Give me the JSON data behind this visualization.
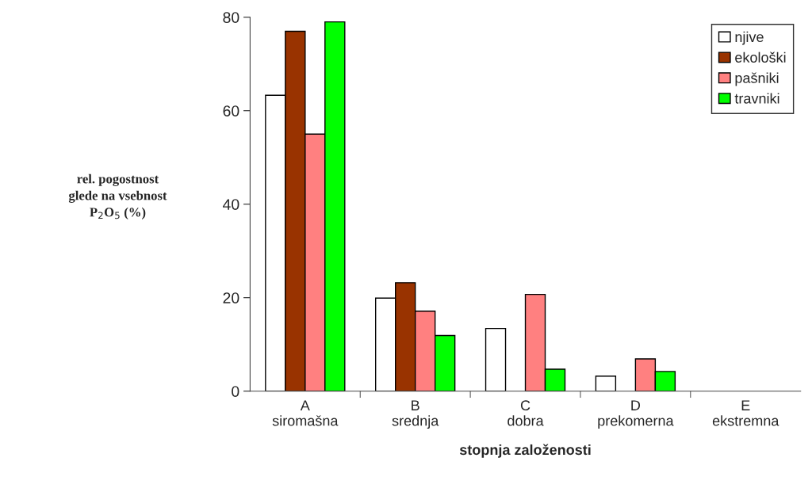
{
  "chart_data": {
    "type": "bar",
    "categories": [
      "A\nsiromašna",
      "B\nsrednja",
      "C\ndobra",
      "D\nprekomerna",
      "E\nekstremna"
    ],
    "series": [
      {
        "name": "njive",
        "color": "#ffffff",
        "values": [
          63.3,
          19.9,
          13.4,
          3.2,
          0
        ]
      },
      {
        "name": "ekološki",
        "color": "#993300",
        "values": [
          77.0,
          23.2,
          0,
          0,
          0
        ]
      },
      {
        "name": "pašniki",
        "color": "#ff8080",
        "values": [
          55.0,
          17.1,
          20.7,
          6.9,
          0
        ]
      },
      {
        "name": "travniki",
        "color": "#00ff00",
        "values": [
          79.0,
          11.9,
          4.7,
          4.2,
          0
        ]
      }
    ],
    "ylabel": "rel. pogostnost\nglede na vsebnost\nP$_{2}$O$_{5}$ (%)",
    "xlabel": "stopnja založenosti",
    "ylim": [
      0,
      80
    ],
    "yticks": [
      0,
      20,
      40,
      60,
      80
    ],
    "grid": false,
    "legend": "top right"
  }
}
